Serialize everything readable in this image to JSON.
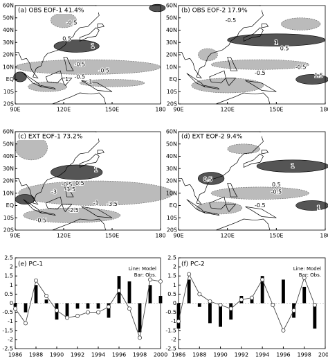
{
  "maps": [
    {
      "title": "(a) OBS EOF-1 41.4%",
      "xticks": [
        "90E",
        "120E",
        "150E",
        "180"
      ],
      "yticks": [
        "60N",
        "50N",
        "40N",
        "30N",
        "20N",
        "10N",
        "EQ",
        "10S",
        "20S"
      ],
      "labels": [
        "-0.5",
        "0.5",
        "1",
        "-0.5",
        "-0.5",
        "-0.5",
        "-1",
        "1"
      ]
    },
    {
      "title": "(b) OBS EOF-2 17.9%",
      "xticks": [
        "90E",
        "120E",
        "150E",
        "180"
      ],
      "yticks": [
        "60N",
        "50N",
        "40N",
        "30N",
        "20N",
        "10N",
        "EQ",
        "10S",
        "20S"
      ],
      "labels": [
        "-0.5",
        "1",
        "0.5",
        "-0.5",
        "-0.5",
        "1.5"
      ]
    },
    {
      "title": "(c) EXT EOF-1 73.2%",
      "xticks": [
        "90E",
        "120E",
        "150E",
        "180"
      ],
      "yticks": [
        "60N",
        "50N",
        "40N",
        "30N",
        "20N",
        "10N",
        "EQ",
        "10S",
        "20S"
      ],
      "labels": [
        "1",
        "0.5",
        "-0.5",
        "-1.5",
        "-3",
        "-2.5",
        "-1",
        "-3.5",
        "-0.5"
      ]
    },
    {
      "title": "(d) EXT EOF-2 9.4%",
      "xticks": [
        "90E",
        "120E",
        "150E",
        "180"
      ],
      "yticks": [
        "60N",
        "50N",
        "40N",
        "30N",
        "20N",
        "10N",
        "EQ",
        "10S",
        "20S"
      ],
      "labels": [
        "1",
        "0.5",
        "0.5",
        "-0.5",
        "-0.5",
        "1"
      ]
    }
  ],
  "chart_data": [
    {
      "type": "bar_line",
      "title": "(e) PC-1",
      "x": [
        1986,
        1987,
        1988,
        1989,
        1990,
        1991,
        1992,
        1993,
        1994,
        1995,
        1996,
        1997,
        1998,
        1999,
        2000
      ],
      "series": [
        {
          "name": "Line: Model",
          "type": "line",
          "color": "#444444",
          "values": [
            -0.3,
            -1.1,
            1.25,
            0.4,
            -0.4,
            -0.8,
            -0.7,
            -0.5,
            -0.5,
            -0.2,
            0.7,
            -0.3,
            -1.9,
            1.3,
            1.2
          ]
        },
        {
          "name": "Bar: Obs.",
          "type": "bar",
          "color": "#000000",
          "values": [
            -0.2,
            -0.5,
            1.0,
            0.2,
            -0.9,
            -0.8,
            -0.3,
            -0.3,
            -0.3,
            -0.8,
            1.5,
            1.2,
            -1.6,
            1.0,
            0.4
          ]
        }
      ],
      "xlim": [
        1986,
        2000
      ],
      "xticks": [
        1986,
        1988,
        1990,
        1992,
        1994,
        1996,
        1998,
        2000
      ],
      "ylim": [
        -2.5,
        2.5
      ],
      "yticks": [
        -2.5,
        -2,
        -1.5,
        -1,
        -0.5,
        0,
        0.5,
        1,
        1.5,
        2,
        2.5
      ]
    },
    {
      "type": "bar_line",
      "title": "(f) PC-2",
      "x": [
        1986,
        1987,
        1988,
        1989,
        1990,
        1991,
        1992,
        1993,
        1994,
        1995,
        1996,
        1997,
        1998,
        1999,
        2000
      ],
      "series": [
        {
          "name": "Line: Model",
          "type": "line",
          "color": "#444444",
          "values": [
            -1.0,
            1.6,
            0.5,
            0.1,
            -0.1,
            -0.3,
            0.2,
            0.3,
            1.3,
            -0.1,
            -1.5,
            -0.4,
            1.4,
            -0.1,
            null
          ]
        },
        {
          "name": "Bar: Obs.",
          "type": "bar",
          "color": "#000000",
          "values": [
            -1.4,
            1.3,
            -0.2,
            -1.1,
            -1.3,
            -0.9,
            0.4,
            0.3,
            1.5,
            -0.1,
            1.3,
            -0.8,
            0.9,
            -1.4,
            null
          ]
        }
      ],
      "xlim": [
        1986,
        2000
      ],
      "xticks": [
        1986,
        1988,
        1990,
        1992,
        1994,
        1996,
        1998,
        2000
      ],
      "ylim": [
        -2.5,
        2.5
      ],
      "yticks": [
        -2.5,
        -2,
        -1.5,
        -1,
        -0.5,
        0,
        0.5,
        1,
        1.5,
        2,
        2.5
      ]
    }
  ]
}
